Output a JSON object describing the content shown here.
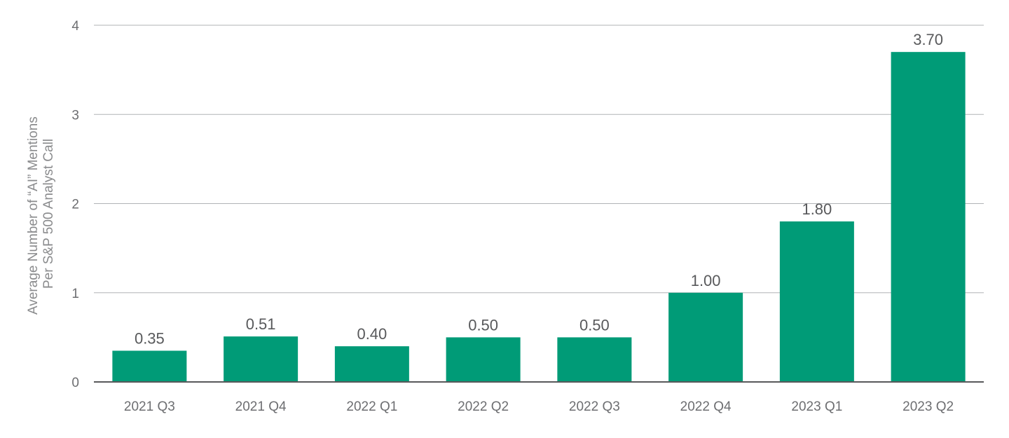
{
  "chart_data": {
    "type": "bar",
    "categories": [
      "2021 Q3",
      "2021 Q4",
      "2022 Q1",
      "2022 Q2",
      "2022 Q3",
      "2022 Q4",
      "2023 Q1",
      "2023 Q2"
    ],
    "values": [
      0.35,
      0.51,
      0.4,
      0.5,
      0.5,
      1.0,
      1.8,
      3.7
    ],
    "value_labels": [
      "0.35",
      "0.51",
      "0.40",
      "0.50",
      "0.50",
      "1.00",
      "1.80",
      "3.70"
    ],
    "ylabel_line1": "Average Number of “AI” Mentions",
    "ylabel_line2": "Per S&P 500 Analyst Call",
    "ylim": [
      0,
      4
    ],
    "yticks": [
      0,
      1,
      2,
      3,
      4
    ],
    "ytick_labels": [
      "0",
      "1",
      "2",
      "3",
      "4"
    ],
    "grid": true,
    "bar_color": "#009b77"
  }
}
